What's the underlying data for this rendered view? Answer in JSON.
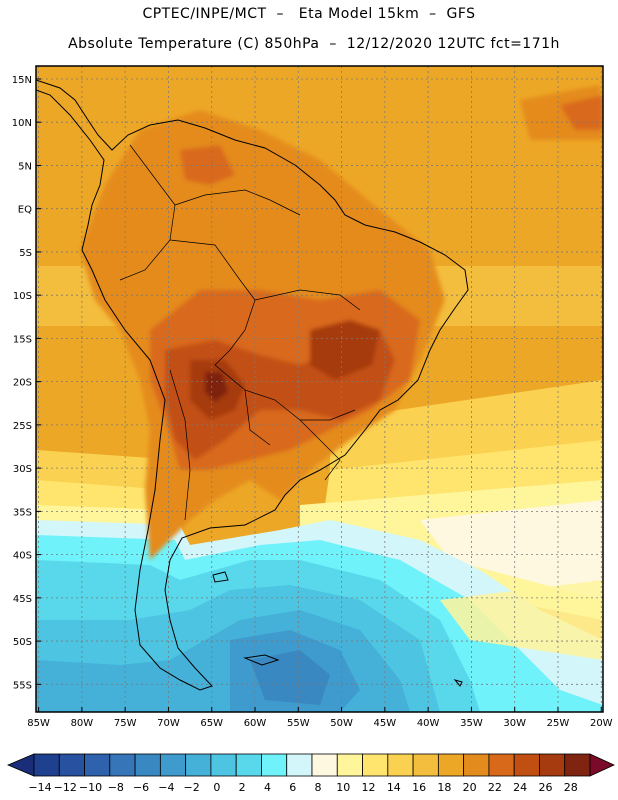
{
  "header": {
    "line1": "CPTEC/INPE/MCT  –   Eta Model 15km  –  GFS",
    "line2": "Absolute Temperature (C) 850hPa  –  12/12/2020 12UTC fct=171h"
  },
  "axes": {
    "lat_labels": [
      "15N",
      "10N",
      "5N",
      "EQ",
      "5S",
      "10S",
      "15S",
      "20S",
      "25S",
      "30S",
      "35S",
      "40S",
      "45S",
      "50S",
      "55S"
    ],
    "lat_values": [
      15,
      10,
      5,
      0,
      -5,
      -10,
      -15,
      -20,
      -25,
      -30,
      -35,
      -40,
      -45,
      -50,
      -55
    ],
    "lon_labels": [
      "85W",
      "80W",
      "75W",
      "70W",
      "65W",
      "60W",
      "55W",
      "50W",
      "45W",
      "40W",
      "35W",
      "30W",
      "25W",
      "20W"
    ],
    "lon_values": [
      -85,
      -80,
      -75,
      -70,
      -65,
      -60,
      -55,
      -50,
      -45,
      -40,
      -35,
      -30,
      -25,
      -20
    ],
    "lon_range": [
      -85.3,
      -19.8
    ],
    "lat_range": [
      -58.2,
      16.5
    ]
  },
  "colorbar": {
    "labels": [
      "-14",
      "-12",
      "-10",
      "-8",
      "-6",
      "-4",
      "-2",
      "0",
      "2",
      "4",
      "6",
      "8",
      "10",
      "12",
      "14",
      "16",
      "18",
      "20",
      "22",
      "24",
      "26",
      "28"
    ],
    "colors": [
      "#1f3f8f",
      "#28519f",
      "#2f62ad",
      "#3575b8",
      "#3a88c2",
      "#3f9bcd",
      "#45b0d8",
      "#4cc4e2",
      "#59d8ec",
      "#6ff2fa",
      "#d2f6fa",
      "#fff8e1",
      "#fff59b",
      "#ffe46d",
      "#fad150",
      "#f3bd3d",
      "#eda726",
      "#e48b1e",
      "#d9691a",
      "#c24f12",
      "#a63b0f",
      "#7e2410"
    ],
    "under_color": "#1a2d78",
    "over_color": "#7a0a28"
  }
}
